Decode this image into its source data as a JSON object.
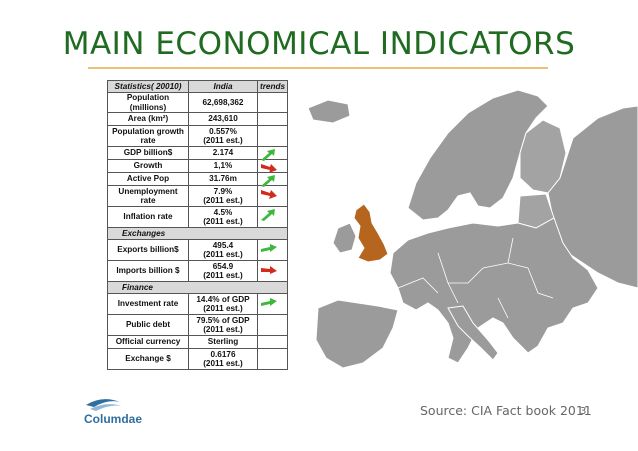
{
  "title": "MAIN ECONOMICAL INDICATORS",
  "table": {
    "headers": [
      "Statistics( 20010)",
      "India",
      "trends"
    ],
    "rows": [
      {
        "label": "Population (millions)",
        "value": "62,698,362",
        "trend": "",
        "tall": false
      },
      {
        "label": "Area (km²)",
        "value": "243,610",
        "trend": "",
        "tall": false
      },
      {
        "label": "Population growth rate",
        "value": "0.557%\n(2011 est.)",
        "trend": "",
        "tall": true
      },
      {
        "label": "GDP billion$",
        "value": "2.174",
        "trend": "up",
        "tall": false
      },
      {
        "label": "Growth",
        "value": "1,1%",
        "trend": "down",
        "tall": false
      },
      {
        "label": "Active Pop",
        "value": "31.76m",
        "trend": "up",
        "tall": false
      },
      {
        "label": "Unemployment rate",
        "value": "7.9%\n(2011 est.)",
        "trend": "down",
        "tall": true
      },
      {
        "label": "Inflation rate",
        "value": "4.5%\n(2011 est.)",
        "trend": "up",
        "tall": true
      },
      {
        "section": "Exchanges"
      },
      {
        "label": "Exports billion$",
        "value": "495.4\n(2011 est.)",
        "trend": "right-up",
        "tall": true
      },
      {
        "label": "Imports billion $",
        "value": "654.9\n(2011 est.)",
        "trend": "right-down",
        "tall": true
      },
      {
        "section": "Finance"
      },
      {
        "label": "Investment rate",
        "value": "14.4% of GDP\n(2011 est.)",
        "trend": "right-up",
        "tall": true
      },
      {
        "label": "Public debt",
        "value": "79.5% of GDP\n(2011 est.)",
        "trend": "",
        "tall": true
      },
      {
        "label": "Official currency",
        "value": "Sterling",
        "trend": "",
        "tall": false
      },
      {
        "label": "Exchange $",
        "value": "0.6176\n(2011 est.)",
        "trend": "",
        "tall": true
      }
    ]
  },
  "colors": {
    "title": "#1f6b20",
    "highlight": "#b5651d",
    "map": "#9b9b9b",
    "up": "#3cb83c",
    "down": "#d42a1c"
  },
  "logo_text": "Columdae",
  "source": "Source: CIA Fact book 2011",
  "page_number": "3"
}
